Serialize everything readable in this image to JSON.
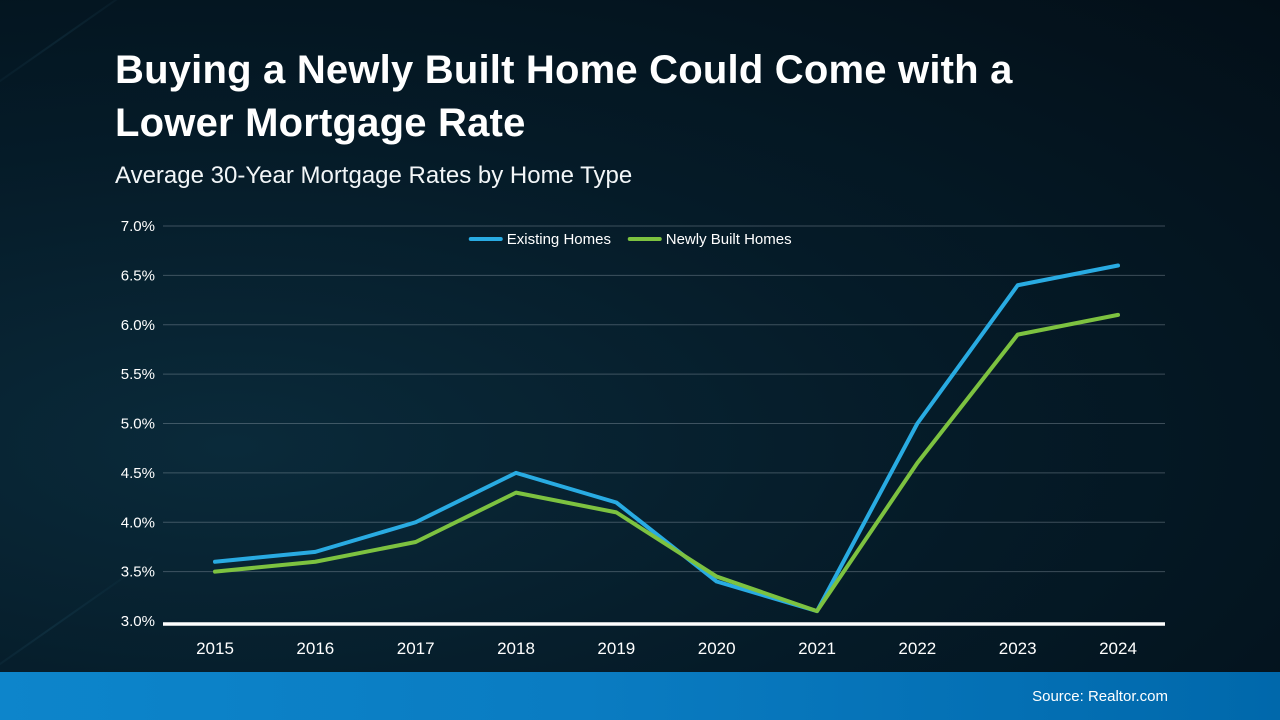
{
  "title_lines": [
    "Buying a Newly Built Home Could Come with a",
    "Lower Mortgage Rate"
  ],
  "subtitle": "Average 30-Year Mortgage Rates by Home Type",
  "footer": {
    "source": "Source: Realtor.com"
  },
  "colors": {
    "background": "#051b28",
    "existing_homes_line": "#29abe2",
    "newly_built_line": "#7dc240",
    "gridline": "rgba(165,178,188,0.35)",
    "axis_line": "#ffffff",
    "text": "#ffffff",
    "footer_bar": "#0a7cc2"
  },
  "chart_data": {
    "type": "line",
    "x": [
      2015,
      2016,
      2017,
      2018,
      2019,
      2020,
      2021,
      2022,
      2023,
      2024
    ],
    "series": [
      {
        "name": "Existing Homes",
        "color": "#29abe2",
        "values": [
          3.6,
          3.7,
          4.0,
          4.5,
          4.2,
          3.4,
          3.1,
          5.0,
          6.4,
          6.6
        ]
      },
      {
        "name": "Newly Built Homes",
        "color": "#7dc240",
        "values": [
          3.5,
          3.6,
          3.8,
          4.3,
          4.1,
          3.45,
          3.1,
          4.6,
          5.9,
          6.1
        ]
      }
    ],
    "title": "Buying a Newly Built Home Could Come with a Lower Mortgage Rate",
    "subtitle": "Average 30-Year Mortgage Rates by Home Type",
    "xlabel": "",
    "ylabel": "",
    "ylim": [
      3.0,
      7.0
    ],
    "ytick_step": 0.5,
    "ytick_format": "percent_one_decimal",
    "grid": "horizontal",
    "legend_position": "top-center",
    "legend": [
      "Existing Homes",
      "Newly Built Homes"
    ]
  }
}
